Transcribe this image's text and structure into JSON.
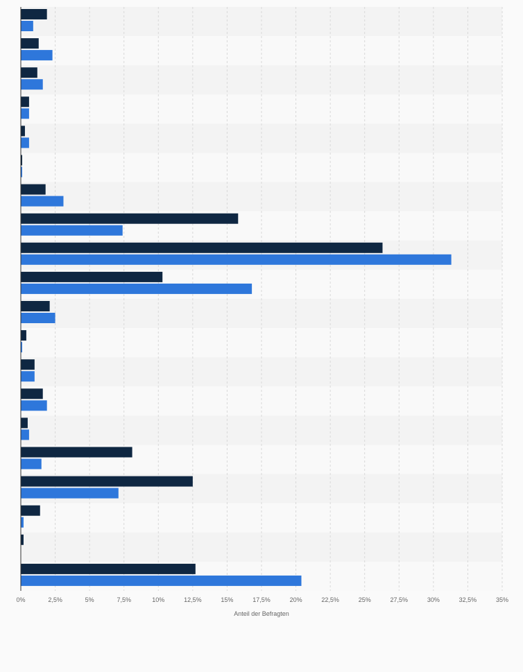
{
  "chart_data": {
    "type": "bar",
    "orientation": "horizontal",
    "title": "",
    "xlabel": "Anteil der Befragten",
    "ylabel": "",
    "xlim": [
      0,
      35
    ],
    "x_ticks": [
      "0%",
      "2,5%",
      "5%",
      "7,5%",
      "10%",
      "12,5%",
      "15%",
      "17,5%",
      "20%",
      "22,5%",
      "25%",
      "27,5%",
      "30%",
      "32,5%",
      "35%"
    ],
    "x_tick_values": [
      0,
      2.5,
      5,
      7.5,
      10,
      12.5,
      15,
      17.5,
      20,
      22.5,
      25,
      27.5,
      30,
      32.5,
      35
    ],
    "grid": true,
    "legend": "none",
    "categories": [
      "",
      "",
      "",
      "",
      "",
      "",
      "",
      "",
      "",
      "",
      "",
      "",
      "",
      "",
      "",
      "",
      "",
      "",
      "",
      ""
    ],
    "series": [
      {
        "color": "#0f2742",
        "values": [
          1.9,
          1.3,
          1.2,
          0.6,
          0.3,
          0.1,
          1.8,
          15.8,
          26.3,
          10.3,
          2.1,
          0.4,
          1.0,
          1.6,
          0.5,
          8.1,
          12.5,
          1.4,
          0.2,
          12.7
        ]
      },
      {
        "color": "#2e77db",
        "values": [
          0.9,
          2.3,
          1.6,
          0.6,
          0.6,
          0.1,
          3.1,
          7.4,
          31.3,
          16.8,
          2.5,
          0.1,
          1.0,
          1.9,
          0.6,
          1.5,
          7.1,
          0.2,
          0.0,
          20.4
        ]
      }
    ]
  },
  "colors": {
    "background": "#fafafa",
    "band_light": "#f9f9f9",
    "band_dark": "#f3f3f3",
    "grid": "#d8d8d8",
    "axis": "#333333",
    "tick_text": "#666666"
  }
}
